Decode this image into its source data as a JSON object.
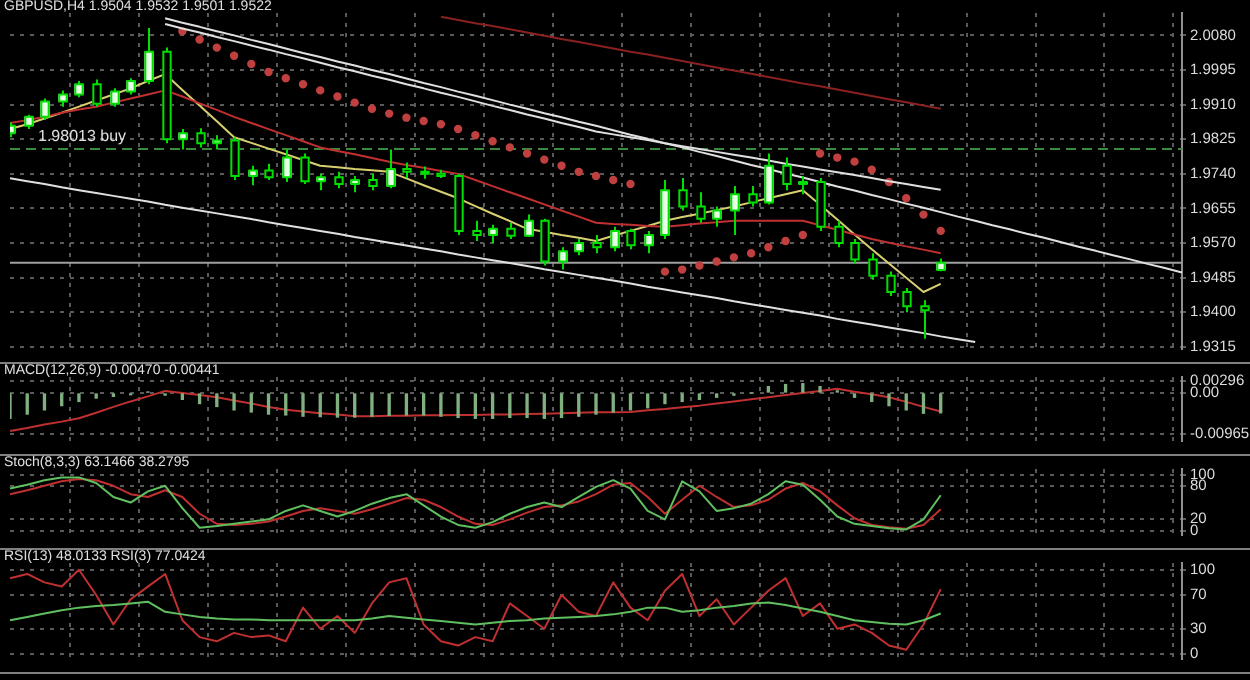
{
  "chart_data": [
    {
      "type": "candlestick",
      "title": "GBPUSD,H4 1.9504 1.9532 1.9501 1.9522",
      "tick_labels": "y",
      "grid": true,
      "color": "#00e000",
      "colors": [
        "#e8ffe8",
        "#e8ffe8",
        "#e8ffe8",
        "#e8ffe8",
        "#e8ffe8",
        "#000000",
        "#e8ffe8",
        "#e8ffe8",
        "#e8ffe8",
        "#000000",
        "#e8ffe8",
        "#000000",
        "#e8ffe8",
        "#000000",
        "#e8ffe8",
        "#000000",
        "#e8ffe8",
        "#000000",
        "#e8ffe8",
        "#000000",
        "#e8ffe8",
        "#000000",
        "#e8ffe8",
        "#000000",
        "#000000",
        "#000000",
        "#000000",
        "#000000",
        "#e8ffe8",
        "#000000",
        "#e8ffe8",
        "#000000",
        "#e8ffe8",
        "#e8ffe8",
        "#000000",
        "#e8ffe8",
        "#000000",
        "#e8ffe8",
        "#e8ffe8",
        "#000000",
        "#000000",
        "#e8ffe8",
        "#e8ffe8",
        "#000000",
        "#e8ffe8",
        "#000000",
        "#e8ffe8",
        "#000000",
        "#000000",
        "#000000",
        "#000000",
        "#000000",
        "#000000",
        "#000000",
        "#e8ffe8",
        null,
        null,
        null,
        null,
        null,
        null,
        null,
        null,
        null,
        null,
        null,
        null,
        null,
        null
      ],
      "categories": [
        null,
        null,
        null,
        null,
        null,
        null,
        null,
        null,
        null,
        null,
        null,
        null,
        null,
        null,
        null,
        null,
        null,
        null,
        null,
        null,
        null,
        null,
        null,
        null,
        null,
        null,
        null,
        null,
        null,
        null,
        null,
        null,
        null,
        null,
        null,
        null,
        null,
        null,
        null,
        null,
        null,
        null,
        null,
        null,
        null,
        null,
        null,
        null,
        null,
        null,
        null,
        null,
        null,
        null,
        null,
        null,
        null,
        null,
        null,
        null,
        null,
        null,
        null,
        null,
        null,
        null,
        null,
        null,
        null
      ],
      "ohlc": [
        [
          1.984,
          1.9866,
          1.983,
          1.9858
        ],
        [
          1.9858,
          1.9885,
          1.985,
          1.988
        ],
        [
          1.988,
          1.9925,
          1.9872,
          1.9918
        ],
        [
          1.9918,
          1.9945,
          1.9905,
          1.9935
        ],
        [
          1.9935,
          1.9968,
          1.9928,
          1.996
        ],
        [
          1.996,
          1.9972,
          1.9905,
          1.9912
        ],
        [
          1.9912,
          1.995,
          1.9905,
          1.9942
        ],
        [
          1.9942,
          1.9975,
          1.9935,
          1.9968
        ],
        [
          1.9968,
          2.0098,
          1.996,
          2.004
        ],
        [
          2.004,
          2.005,
          1.9815,
          1.9825
        ],
        [
          1.9825,
          1.985,
          1.98,
          1.984
        ],
        [
          1.984,
          1.9852,
          1.9805,
          1.9815
        ],
        [
          1.9815,
          1.9835,
          1.98,
          1.9822
        ],
        [
          1.9822,
          1.983,
          1.9725,
          1.9735
        ],
        [
          1.9735,
          1.976,
          1.9712,
          1.9748
        ],
        [
          1.9748,
          1.9765,
          1.9725,
          1.9732
        ],
        [
          1.9732,
          1.98,
          1.972,
          1.978
        ],
        [
          1.978,
          1.979,
          1.9715,
          1.9722
        ],
        [
          1.9722,
          1.974,
          1.97,
          1.9732
        ],
        [
          1.9732,
          1.9745,
          1.9705,
          1.9715
        ],
        [
          1.9715,
          1.9735,
          1.9695,
          1.9725
        ],
        [
          1.9725,
          1.974,
          1.97,
          1.971
        ],
        [
          1.971,
          1.98,
          1.9705,
          1.9752
        ],
        [
          1.9752,
          1.9768,
          1.973,
          1.9745
        ],
        [
          1.9745,
          1.9758,
          1.9728,
          1.974
        ],
        [
          1.974,
          1.975,
          1.973,
          1.9735
        ],
        [
          1.9735,
          1.974,
          1.959,
          1.96
        ],
        [
          1.96,
          1.9625,
          1.9575,
          1.959
        ],
        [
          1.959,
          1.9615,
          1.957,
          1.9605
        ],
        [
          1.9605,
          1.962,
          1.958,
          1.9588
        ],
        [
          1.9588,
          1.964,
          1.9585,
          1.9625
        ],
        [
          1.9625,
          1.963,
          1.9515,
          1.9525
        ],
        [
          1.9525,
          1.956,
          1.9505,
          1.955
        ],
        [
          1.955,
          1.958,
          1.954,
          1.957
        ],
        [
          1.957,
          1.959,
          1.9545,
          1.956
        ],
        [
          1.956,
          1.961,
          1.955,
          1.96
        ],
        [
          1.96,
          1.9605,
          1.9555,
          1.9565
        ],
        [
          1.9565,
          1.96,
          1.9545,
          1.959
        ],
        [
          1.959,
          1.9725,
          1.958,
          1.97
        ],
        [
          1.97,
          1.973,
          1.965,
          1.966
        ],
        [
          1.966,
          1.9695,
          1.962,
          1.963
        ],
        [
          1.963,
          1.966,
          1.961,
          1.965
        ],
        [
          1.965,
          1.971,
          1.959,
          1.969
        ],
        [
          1.969,
          1.971,
          1.966,
          1.967
        ],
        [
          1.967,
          1.979,
          1.9665,
          1.976
        ],
        [
          1.976,
          1.978,
          1.97,
          1.9715
        ],
        [
          1.9715,
          1.9735,
          1.969,
          1.972
        ],
        [
          1.972,
          1.973,
          1.96,
          1.961
        ],
        [
          1.961,
          1.9625,
          1.956,
          1.957
        ],
        [
          1.957,
          1.958,
          1.952,
          1.953
        ],
        [
          1.953,
          1.9545,
          1.948,
          1.949
        ],
        [
          1.949,
          1.95,
          1.944,
          1.945
        ],
        [
          1.945,
          1.946,
          1.94,
          1.9415
        ],
        [
          1.9415,
          1.943,
          1.9335,
          1.9405
        ],
        [
          1.9504,
          1.9532,
          1.9501,
          1.9522
        ],
        null,
        null,
        null,
        null,
        null,
        null,
        null,
        null,
        null,
        null,
        null,
        null,
        null,
        null
      ],
      "series": [
        {
          "type": "line",
          "color": "#c03030",
          "values": [
            1.9865,
            1.9872,
            1.988,
            1.989,
            1.9898,
            1.9905,
            1.9915,
            1.9925,
            1.9935,
            1.9945,
            1.993,
            1.9913,
            1.9897,
            1.988,
            1.9865,
            1.985,
            1.9835,
            1.982,
            1.9805,
            1.9796,
            1.9788,
            1.9779,
            1.977,
            1.9762,
            1.9755,
            1.9747,
            1.974,
            1.9725,
            1.971,
            1.9695,
            1.968,
            1.9665,
            1.965,
            1.9635,
            1.962,
            1.9617,
            1.9615,
            1.9612,
            1.961,
            1.9614,
            1.9618,
            1.9621,
            1.9625,
            1.9625,
            1.9625,
            1.9625,
            1.9625,
            1.9614,
            1.9603,
            1.9591,
            1.958,
            1.9571,
            1.9562,
            1.9554,
            1.9545,
            null,
            null,
            null,
            null,
            null,
            null,
            null,
            null,
            null,
            null,
            null,
            null,
            null,
            null
          ]
        },
        {
          "type": "line",
          "color": "#d8d070",
          "values": [
            1.985,
            1.9862,
            1.9876,
            1.989,
            1.9905,
            1.992,
            1.9935,
            1.995,
            1.9968,
            1.9985,
            1.9946,
            1.9908,
            1.9869,
            1.983,
            1.9816,
            1.9802,
            1.9788,
            1.9774,
            1.976,
            1.9756,
            1.9752,
            1.9749,
            1.9745,
            1.9729,
            1.9712,
            1.9696,
            1.968,
            1.9661,
            1.9642,
            1.9624,
            1.9605,
            1.9598,
            1.959,
            1.9583,
            1.9575,
            1.9588,
            1.96,
            1.9612,
            1.9625,
            1.9634,
            1.9642,
            1.9651,
            1.966,
            1.967,
            1.968,
            1.969,
            1.97,
            1.9664,
            1.9628,
            1.9591,
            1.9555,
            1.952,
            1.9485,
            1.945,
            1.947,
            null,
            null,
            null,
            null,
            null,
            null,
            null,
            null,
            null,
            null,
            null,
            null,
            null,
            null
          ]
        },
        {
          "type": "line",
          "color": "#8a2020",
          "values": [
            null,
            null,
            null,
            null,
            null,
            null,
            null,
            null,
            null,
            null,
            null,
            null,
            null,
            null,
            null,
            null,
            null,
            null,
            null,
            null,
            null,
            null,
            null,
            null,
            null,
            2.0126,
            2.0118,
            2.011,
            2.0103,
            2.0095,
            2.0087,
            2.0079,
            2.0071,
            2.0064,
            2.0056,
            2.0048,
            2.004,
            2.0033,
            2.0025,
            2.0017,
            2.0009,
            2.0001,
            1.9994,
            1.9986,
            1.9978,
            1.997,
            1.9962,
            1.9955,
            1.9947,
            1.9939,
            1.9931,
            1.9923,
            1.9916,
            1.9908,
            1.99,
            null,
            null,
            null,
            null,
            null,
            null,
            null,
            null,
            null,
            null,
            null,
            null,
            null,
            null
          ]
        },
        {
          "type": "line",
          "color": "#e0e0e0",
          "values": [
            1.9729,
            1.9722,
            1.9715,
            1.9707,
            1.97,
            1.9693,
            1.9686,
            1.9679,
            1.9672,
            1.9664,
            1.9657,
            1.965,
            1.9643,
            1.9636,
            1.9629,
            1.9621,
            1.9614,
            1.9607,
            1.96,
            1.9593,
            1.9585,
            1.9578,
            1.9571,
            1.9564,
            1.9557,
            1.955,
            1.9542,
            1.9535,
            1.9528,
            1.9521,
            1.9514,
            1.9506,
            1.9499,
            1.9492,
            1.9485,
            1.9478,
            1.9471,
            1.9463,
            1.9456,
            1.9449,
            1.9442,
            1.9435,
            1.9427,
            1.942,
            1.9413,
            1.9406,
            1.9399,
            1.9392,
            1.9384,
            1.9377,
            1.937,
            1.9363,
            1.9356,
            1.9349,
            1.9341,
            1.9334,
            1.9327,
            null,
            null,
            null,
            null,
            null,
            null,
            null,
            null,
            null,
            null,
            null,
            null
          ]
        },
        {
          "type": "line",
          "color": "#e0e0e0",
          "values": [
            null,
            null,
            null,
            null,
            null,
            null,
            null,
            null,
            null,
            2.0122,
            2.0111,
            2.0101,
            2.009,
            2.008,
            2.0069,
            2.0059,
            2.0048,
            2.0037,
            2.0027,
            2.0016,
            2.0006,
            1.9995,
            1.9985,
            1.9974,
            1.9963,
            1.9953,
            1.9942,
            1.9932,
            1.9921,
            1.991,
            1.99,
            1.9889,
            1.9879,
            1.9868,
            1.9858,
            1.9847,
            1.9836,
            1.9826,
            1.9815,
            1.9805,
            1.9794,
            1.9784,
            1.9773,
            1.9762,
            1.9752,
            1.9741,
            1.9731,
            1.972,
            1.9709,
            1.9699,
            1.9688,
            1.9678,
            1.9667,
            1.9657,
            1.9646,
            1.9635,
            1.9625,
            1.9614,
            1.9604,
            1.9593,
            1.9583,
            1.9572,
            1.9561,
            1.9551,
            1.954,
            1.953,
            1.9519,
            1.9509,
            1.9498
          ]
        },
        {
          "type": "line",
          "color": "#e0e0e0",
          "values": [
            null,
            null,
            null,
            null,
            null,
            null,
            null,
            null,
            null,
            2.0108,
            2.0097,
            2.0087,
            2.0076,
            2.0066,
            2.0055,
            2.0045,
            2.0034,
            2.0024,
            2.0013,
            2.0002,
            1.9992,
            1.9981,
            1.9971,
            1.996,
            1.995,
            1.9939,
            1.9929,
            1.9918,
            1.9907,
            1.9897,
            1.9886,
            1.9876,
            1.9865,
            1.9855,
            1.9844,
            1.9837,
            1.983,
            1.9823,
            1.9815,
            1.9808,
            1.9801,
            1.9794,
            1.9787,
            1.978,
            1.9773,
            1.9765,
            1.9758,
            1.9751,
            1.9744,
            1.9737,
            1.973,
            1.9722,
            1.9715,
            1.9708,
            1.9701,
            null,
            null,
            null,
            null,
            null,
            null,
            null,
            null,
            null,
            null,
            null,
            null,
            null,
            null
          ]
        },
        {
          "type": "scatter",
          "color": "#c04040",
          "marker": "circle",
          "values": [
            null,
            null,
            null,
            null,
            null,
            null,
            null,
            null,
            null,
            null,
            2.009,
            2.007,
            2.005,
            2.003,
            2.001,
            1.999,
            1.9975,
            1.996,
            1.9945,
            1.993,
            1.9915,
            1.99,
            1.9888,
            1.9878,
            1.987,
            1.9862,
            1.985,
            1.9835,
            1.982,
            1.9805,
            1.979,
            1.9775,
            1.976,
            1.9745,
            1.9735,
            1.9725,
            1.9715,
            null,
            1.95,
            1.9505,
            1.9515,
            1.9525,
            1.9535,
            1.9545,
            1.956,
            1.9575,
            1.959,
            1.979,
            1.978,
            1.977,
            1.975,
            1.972,
            1.968,
            1.964,
            1.96,
            null,
            null,
            null,
            null,
            null,
            null,
            null,
            null,
            null,
            null,
            null,
            null,
            null,
            null
          ]
        }
      ],
      "ref_lines": [
        {
          "axis": "y",
          "value": 1.9522,
          "color": "#a0a0a0",
          "line_style": "solid"
        },
        {
          "axis": "y",
          "value": 1.9801,
          "color": "#3c8a3c",
          "line_style": "dashed",
          "label": "1.98013 buy"
        }
      ],
      "ylim": [
        1.931,
        2.0135
      ],
      "yticks": [
        {
          "value": 2.008,
          "label": "2.0080"
        },
        {
          "value": 1.9995,
          "label": "1.9995"
        },
        {
          "value": 1.991,
          "label": "1.9910"
        },
        {
          "value": 1.9825,
          "label": "1.9825"
        },
        {
          "value": 1.974,
          "label": "1.9740"
        },
        {
          "value": 1.9655,
          "label": "1.9655"
        },
        {
          "value": 1.957,
          "label": "1.9570"
        },
        {
          "value": 1.9485,
          "label": "1.9485"
        },
        {
          "value": 1.94,
          "label": "1.9400"
        },
        {
          "value": 1.9315,
          "label": "1.9315"
        }
      ]
    },
    {
      "type": "bar",
      "title": "MACD(12,26,9) -0.00470 -0.00441",
      "tick_labels": "y",
      "grid": true,
      "categories": [
        null,
        null,
        null,
        null,
        null,
        null,
        null,
        null,
        null,
        null,
        null,
        null,
        null,
        null,
        null,
        null,
        null,
        null,
        null,
        null,
        null,
        null,
        null,
        null,
        null,
        null,
        null,
        null,
        null,
        null,
        null,
        null,
        null,
        null,
        null,
        null,
        null,
        null,
        null,
        null,
        null,
        null,
        null,
        null,
        null,
        null,
        null,
        null,
        null,
        null,
        null,
        null,
        null,
        null,
        null,
        null,
        null,
        null,
        null,
        null,
        null,
        null,
        null,
        null,
        null,
        null,
        null,
        null,
        null
      ],
      "series": [
        {
          "type": "bar",
          "color": "#80b080",
          "values": [
            -0.006,
            -0.005,
            -0.004,
            -0.003,
            -0.002,
            -0.0012,
            -0.0008,
            -0.0004,
            0.0002,
            -0.0005,
            -0.0015,
            -0.0025,
            -0.0032,
            -0.004,
            -0.0045,
            -0.005,
            -0.0052,
            -0.0055,
            -0.0056,
            -0.0057,
            -0.0057,
            -0.0055,
            -0.0053,
            -0.0052,
            -0.0052,
            -0.0055,
            -0.0058,
            -0.006,
            -0.006,
            -0.0058,
            -0.0058,
            -0.006,
            -0.0058,
            -0.0055,
            -0.005,
            -0.0045,
            -0.004,
            -0.0035,
            -0.0025,
            -0.002,
            -0.0015,
            -0.001,
            -0.0005,
            0.0,
            0.0015,
            0.002,
            0.0022,
            0.0015,
            0.0005,
            -0.001,
            -0.002,
            -0.003,
            -0.004,
            -0.0048,
            -0.0047,
            null,
            null,
            null,
            null,
            null,
            null,
            null,
            null,
            null,
            null,
            null,
            null,
            null,
            null
          ]
        },
        {
          "type": "line",
          "color": "#c03030",
          "values": [
            -0.009,
            -0.0083,
            -0.0075,
            -0.0068,
            -0.006,
            -0.0047,
            -0.0033,
            -0.002,
            -0.0008,
            0.0005,
            0.0,
            -0.0005,
            -0.001,
            -0.0018,
            -0.0025,
            -0.0033,
            -0.004,
            -0.0044,
            -0.0048,
            -0.0051,
            -0.0055,
            -0.0055,
            -0.0054,
            -0.0054,
            -0.0053,
            -0.0053,
            -0.0052,
            -0.0052,
            -0.0051,
            -0.0051,
            -0.005,
            -0.0049,
            -0.0048,
            -0.0047,
            -0.0046,
            -0.0046,
            -0.0045,
            -0.0041,
            -0.0038,
            -0.0034,
            -0.003,
            -0.0025,
            -0.002,
            -0.0015,
            -0.001,
            -0.0005,
            0.0,
            0.0005,
            0.001,
            0.0003,
            -0.0003,
            -0.001,
            -0.0021,
            -0.0033,
            -0.0044,
            null,
            null,
            null,
            null,
            null,
            null,
            null,
            null,
            null,
            null,
            null,
            null,
            null,
            null
          ]
        }
      ],
      "ylim": [
        -0.0114,
        0.0038
      ],
      "yticks": [
        0.00296,
        {
          "value": 0,
          "label": "0.00"
        },
        -0.00965
      ]
    },
    {
      "type": "line",
      "title": "Stoch(8,3,3) 63.1466 38.2795",
      "tick_labels": "y",
      "grid": true,
      "categories": [
        null,
        null,
        null,
        null,
        null,
        null,
        null,
        null,
        null,
        null,
        null,
        null,
        null,
        null,
        null,
        null,
        null,
        null,
        null,
        null,
        null,
        null,
        null,
        null,
        null,
        null,
        null,
        null,
        null,
        null,
        null,
        null,
        null,
        null,
        null,
        null,
        null,
        null,
        null,
        null,
        null,
        null,
        null,
        null,
        null,
        null,
        null,
        null,
        null,
        null,
        null,
        null,
        null,
        null,
        null,
        null,
        null,
        null,
        null,
        null,
        null,
        null,
        null,
        null,
        null,
        null,
        null,
        null,
        null
      ],
      "series": [
        {
          "color": "#60c060",
          "values": [
            75,
            82,
            90,
            95,
            95,
            85,
            60,
            50,
            70,
            80,
            40,
            5,
            8,
            12,
            16,
            20,
            35,
            45,
            35,
            25,
            35,
            48,
            58,
            65,
            45,
            25,
            10,
            5,
            15,
            30,
            42,
            50,
            42,
            60,
            78,
            90,
            75,
            35,
            20,
            88,
            70,
            35,
            40,
            48,
            65,
            88,
            82,
            55,
            25,
            12,
            8,
            4,
            2,
            20,
            63,
            null,
            null,
            null,
            null,
            null,
            null,
            null,
            null,
            null,
            null,
            null,
            null,
            null,
            null
          ]
        },
        {
          "color": "#c03030",
          "values": [
            65,
            72,
            80,
            88,
            92,
            90,
            80,
            65,
            60,
            72,
            60,
            30,
            12,
            10,
            12,
            16,
            25,
            35,
            40,
            35,
            30,
            38,
            48,
            58,
            55,
            42,
            25,
            12,
            10,
            20,
            32,
            42,
            45,
            52,
            65,
            82,
            85,
            60,
            30,
            55,
            80,
            60,
            42,
            45,
            55,
            75,
            85,
            70,
            45,
            22,
            10,
            6,
            3,
            10,
            38,
            null,
            null,
            null,
            null,
            null,
            null,
            null,
            null,
            null,
            null,
            null,
            null,
            null,
            null
          ]
        }
      ],
      "ylim": [
        -8,
        110
      ],
      "yticks": [
        100,
        80,
        20,
        0
      ]
    },
    {
      "type": "line",
      "title": "RSI(13) 48.0133 RSI(3) 77.0424",
      "tick_labels": "y",
      "grid": true,
      "categories": [
        null,
        null,
        null,
        null,
        null,
        null,
        null,
        null,
        null,
        null,
        null,
        null,
        null,
        null,
        null,
        null,
        null,
        null,
        null,
        null,
        null,
        null,
        null,
        null,
        null,
        null,
        null,
        null,
        null,
        null,
        null,
        null,
        null,
        null,
        null,
        null,
        null,
        null,
        null,
        null,
        null,
        null,
        null,
        null,
        null,
        null,
        null,
        null,
        null,
        null,
        null,
        null,
        null,
        null,
        null,
        null,
        null,
        null,
        null,
        null,
        null,
        null,
        null,
        null,
        null,
        null,
        null,
        null,
        null
      ],
      "series": [
        {
          "color": "#60c060",
          "values": [
            40,
            44,
            48,
            52,
            55,
            57,
            58,
            60,
            62,
            50,
            47,
            44,
            42,
            41,
            41,
            40,
            40,
            40,
            40,
            40,
            40,
            42,
            45,
            43,
            41,
            39,
            37,
            35,
            37,
            39,
            40,
            42,
            43,
            44,
            45,
            47,
            50,
            55,
            55,
            50,
            52,
            55,
            57,
            60,
            61,
            58,
            54,
            50,
            45,
            40,
            38,
            36,
            35,
            40,
            48,
            null,
            null,
            null,
            null,
            null,
            null,
            null,
            null,
            null,
            null,
            null,
            null,
            null,
            null
          ]
        },
        {
          "color": "#c03030",
          "values": [
            90,
            95,
            85,
            80,
            100,
            70,
            35,
            65,
            80,
            95,
            40,
            20,
            15,
            25,
            20,
            22,
            15,
            55,
            30,
            45,
            25,
            60,
            85,
            90,
            35,
            15,
            10,
            20,
            15,
            60,
            45,
            30,
            70,
            50,
            45,
            85,
            55,
            40,
            75,
            95,
            45,
            65,
            35,
            55,
            75,
            90,
            45,
            60,
            30,
            35,
            25,
            10,
            5,
            35,
            77,
            null,
            null,
            null,
            null,
            null,
            null,
            null,
            null,
            null,
            null,
            null,
            null,
            null,
            null
          ]
        }
      ],
      "ylim": [
        -6,
        108
      ],
      "yticks": [
        100,
        70,
        30,
        0
      ]
    }
  ]
}
